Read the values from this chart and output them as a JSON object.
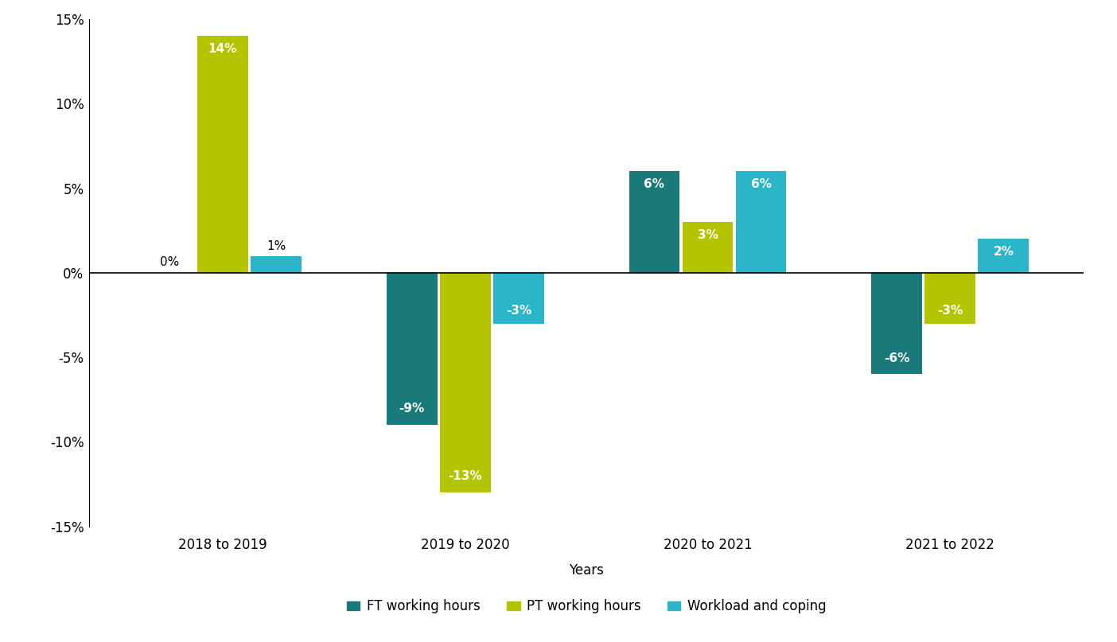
{
  "categories": [
    "2018 to 2019",
    "2019 to 2020",
    "2020 to 2021",
    "2021 to 2022"
  ],
  "series": {
    "FT working hours": [
      0,
      -9,
      6,
      -6
    ],
    "PT working hours": [
      14,
      -13,
      3,
      -3
    ],
    "Workload and coping": [
      1,
      -3,
      6,
      2
    ]
  },
  "colors": {
    "FT working hours": "#1a7a7a",
    "PT working hours": "#b5c400",
    "Workload and coping": "#2ab5c8"
  },
  "bar_labels": {
    "FT working hours": [
      "0%",
      "-9%",
      "6%",
      "-6%"
    ],
    "PT working hours": [
      "14%",
      "-13%",
      "3%",
      "-3%"
    ],
    "Workload and coping": [
      "1%",
      "-3%",
      "6%",
      "2%"
    ]
  },
  "xlabel": "Years",
  "ylim": [
    -15,
    15
  ],
  "yticks": [
    -15,
    -10,
    -5,
    0,
    5,
    10,
    15
  ],
  "ytick_labels": [
    "-15%",
    "-10%",
    "-5%",
    "0%",
    "5%",
    "10%",
    "15%"
  ],
  "legend_labels": [
    "FT working hours",
    "PT working hours",
    "Workload and coping"
  ],
  "background_color": "#ffffff",
  "bar_width": 0.22,
  "label_fontsize": 11,
  "tick_fontsize": 12,
  "legend_fontsize": 12
}
